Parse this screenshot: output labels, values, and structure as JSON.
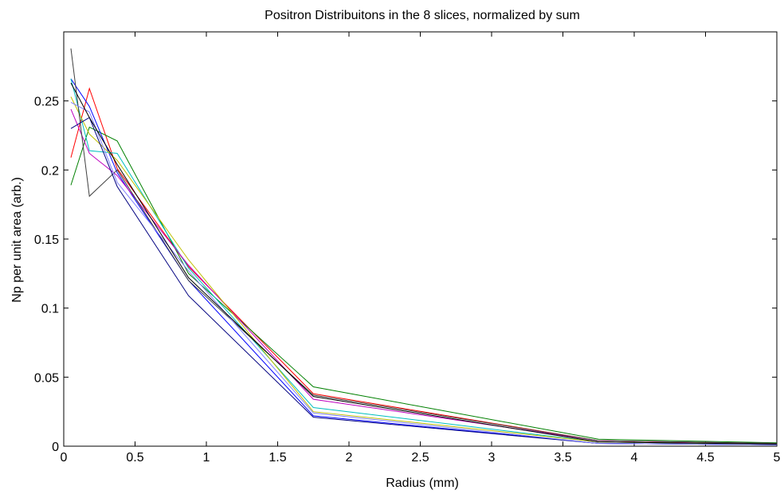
{
  "chart_data": {
    "type": "line",
    "title": "Positron Distribuitons in the 8 slices, normalized by sum",
    "xlabel": "Radius (mm)",
    "ylabel": "Np per unit area (arb.)",
    "xlim": [
      0,
      5
    ],
    "ylim": [
      0,
      0.3
    ],
    "xticks": [
      "0",
      "0.5",
      "1",
      "1.5",
      "2",
      "2.5",
      "3",
      "3.5",
      "4",
      "4.5",
      "5"
    ],
    "yticks": [
      "0",
      "0.05",
      "0.1",
      "0.15",
      "0.2",
      "0.25"
    ],
    "grid": false,
    "x": [
      0.05,
      0.18,
      0.375,
      0.875,
      1.75,
      3.75,
      5.0
    ],
    "series": [
      {
        "color": "#ff0000",
        "values": [
          0.209,
          0.259,
          0.201,
          0.13,
          0.038,
          0.004,
          0.0015
        ]
      },
      {
        "color": "#008000",
        "values": [
          0.189,
          0.231,
          0.221,
          0.125,
          0.043,
          0.005,
          0.0025
        ]
      },
      {
        "color": "#0000ff",
        "values": [
          0.266,
          0.246,
          0.198,
          0.12,
          0.022,
          0.002,
          0.001
        ]
      },
      {
        "color": "#00bfbf",
        "values": [
          0.266,
          0.214,
          0.212,
          0.129,
          0.028,
          0.003,
          0.0015
        ]
      },
      {
        "color": "#bf00bf",
        "values": [
          0.244,
          0.212,
          0.196,
          0.131,
          0.034,
          0.004,
          0.002
        ]
      },
      {
        "color": "#bfbf00",
        "values": [
          0.253,
          0.226,
          0.207,
          0.135,
          0.025,
          0.003,
          0.0015
        ]
      },
      {
        "color": "#404040",
        "values": [
          0.288,
          0.181,
          0.2,
          0.12,
          0.037,
          0.004,
          0.002
        ]
      },
      {
        "color": "#000080",
        "values": [
          0.23,
          0.238,
          0.188,
          0.109,
          0.021,
          0.002,
          0.001
        ]
      },
      {
        "color": "#8080ff",
        "values": [
          0.249,
          0.242,
          0.191,
          0.127,
          0.024,
          0.002,
          0.001
        ]
      },
      {
        "color": "#000000",
        "values": [
          0.263,
          0.238,
          0.204,
          0.122,
          0.036,
          0.003,
          0.0015
        ]
      }
    ]
  }
}
